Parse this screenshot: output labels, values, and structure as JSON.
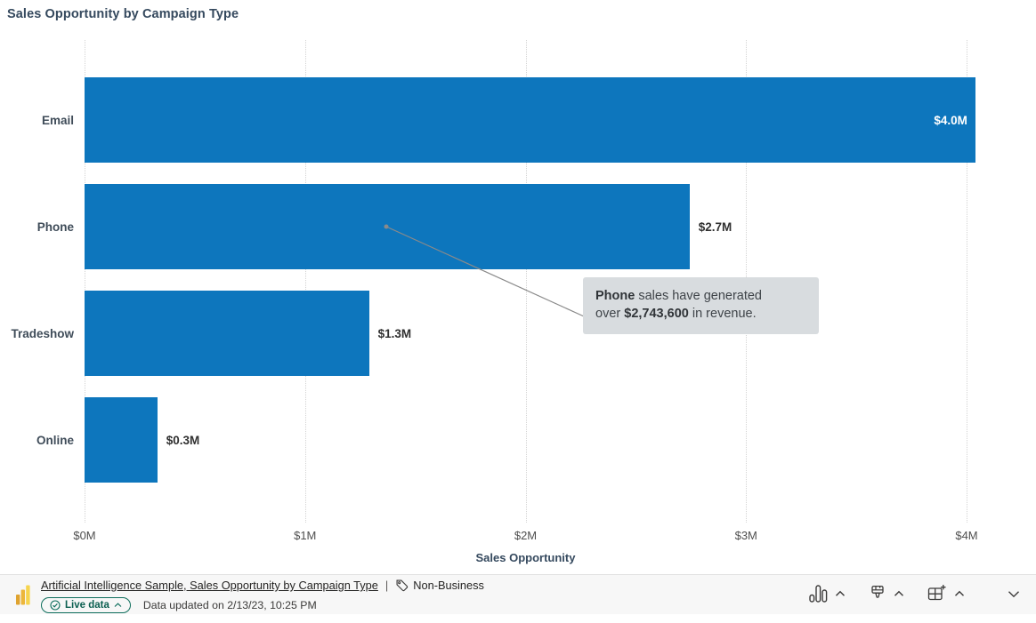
{
  "chart_data": {
    "type": "bar",
    "orientation": "horizontal",
    "title": "Sales Opportunity by Campaign Type",
    "categories": [
      "Email",
      "Phone",
      "Tradeshow",
      "Online"
    ],
    "values": [
      4.04,
      2.7436,
      1.29,
      0.33
    ],
    "value_labels": [
      "$4.0M",
      "$2.7M",
      "$1.3M",
      "$0.3M"
    ],
    "label_inside": [
      true,
      false,
      false,
      false
    ],
    "xlabel": "Sales Opportunity",
    "x_ticks": [
      0,
      1,
      2,
      3,
      4
    ],
    "x_tick_labels": [
      "$0M",
      "$1M",
      "$2M",
      "$3M",
      "$4M"
    ],
    "xlim": [
      0,
      4
    ],
    "bar_color": "#0d76bd",
    "grid": "vertical-dotted",
    "legend": "none"
  },
  "tooltip": {
    "bold1": "Phone",
    "text1": " sales have generated\nover ",
    "bold2": "$2,743,600",
    "text2": " in revenue."
  },
  "footer": {
    "source_link": "Artificial Intelligence Sample, Sales Opportunity by Campaign Type",
    "separator": "|",
    "sensitivity_label": "Non-Business",
    "live_data_label": "Live data",
    "updated_text": "Data updated on 2/13/23, 10:25 PM",
    "icons": {
      "logo": "power-bi-logo",
      "sensitivity": "tag-icon",
      "live": "check-circle-icon",
      "right": [
        "bar-chart-icon",
        "paintbrush-icon",
        "grid-add-icon",
        "chevron-down-icon"
      ]
    },
    "colors": {
      "accent_teal": "#0e6e5c",
      "icon_dark": "#3b3a39"
    }
  }
}
